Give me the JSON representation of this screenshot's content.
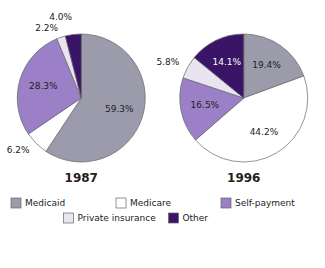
{
  "chart_data": [
    {
      "type": "pie",
      "title": "1987",
      "categories": [
        "Medicaid",
        "Medicare",
        "Self-payment",
        "Private insurance",
        "Other"
      ],
      "values": [
        59.3,
        6.2,
        28.3,
        2.2,
        4.0
      ],
      "value_labels": [
        "59.3%",
        "6.2%",
        "28.3%",
        "2.2%",
        "4.0%"
      ],
      "colors": [
        "#9b9bab",
        "#ffffff",
        "#9b7fc7",
        "#e8e4f0",
        "#3a1466"
      ],
      "data_labels": true,
      "legend": "bottom"
    },
    {
      "type": "pie",
      "title": "1996",
      "categories": [
        "Medicaid",
        "Medicare",
        "Self-payment",
        "Private insurance",
        "Other"
      ],
      "values": [
        19.4,
        44.2,
        16.5,
        5.8,
        14.1
      ],
      "value_labels": [
        "19.4%",
        "44.2%",
        "16.5%",
        "5.8%",
        "14.1%"
      ],
      "colors": [
        "#9b9bab",
        "#ffffff",
        "#9b7fc7",
        "#e8e4f0",
        "#3a1466"
      ],
      "data_labels": true
    }
  ]
}
